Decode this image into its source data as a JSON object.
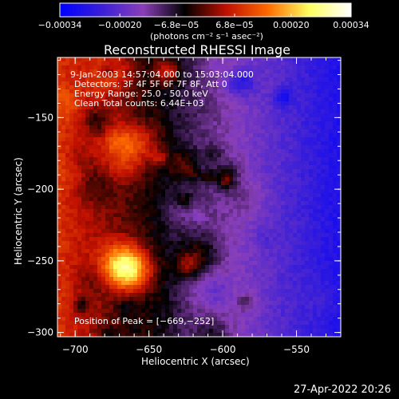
{
  "chart_data": {
    "type": "heatmap",
    "title": "Reconstructed RHESSI Image",
    "xlabel": "Heliocentric X (arcsec)",
    "ylabel": "Heliocentric Y (arcsec)",
    "xlim": [
      -712,
      -520
    ],
    "ylim": [
      -303,
      -108
    ],
    "x_ticks": [
      -700,
      -650,
      -600,
      -550
    ],
    "x_tick_labels": [
      "−700",
      "−650",
      "−600",
      "−550"
    ],
    "y_ticks": [
      -300,
      -250,
      -200,
      -150
    ],
    "y_tick_labels": [
      "−300",
      "−250",
      "−200",
      "−150"
    ],
    "colorbar": {
      "range": [
        -0.00034,
        0.00034
      ],
      "ticks": [
        -0.00034,
        -0.0002,
        -6.8e-05,
        6.8e-05,
        0.0002,
        0.00034
      ],
      "tick_labels": [
        "−0.00034",
        "−0.00020",
        "−6.8e−05",
        "6.8e−05",
        "0.00020",
        "0.00034"
      ],
      "units_label": "(photons cm⁻² s⁻¹ asec⁻²)",
      "colors": [
        "#0000ff",
        "#3a1fd8",
        "#8a3fb8",
        "#000000",
        "#c01000",
        "#ff6a00",
        "#ffff60",
        "#ffffff"
      ]
    },
    "annotations": [
      "9-Jan-2003 14:57:04.000 to 15:03:04.000",
      "Detectors: 3F 4F 5F 6F 7F 8F, Att 0",
      "Energy Range: 25.0 - 50.0 keV",
      "Clean    Total counts: 6.44E+03"
    ],
    "peak_label": "Position of Peak = [−669,−252]",
    "peak_position": [
      -669,
      -252
    ]
  },
  "footer": {
    "timestamp": "27-Apr-2022 20:26"
  }
}
